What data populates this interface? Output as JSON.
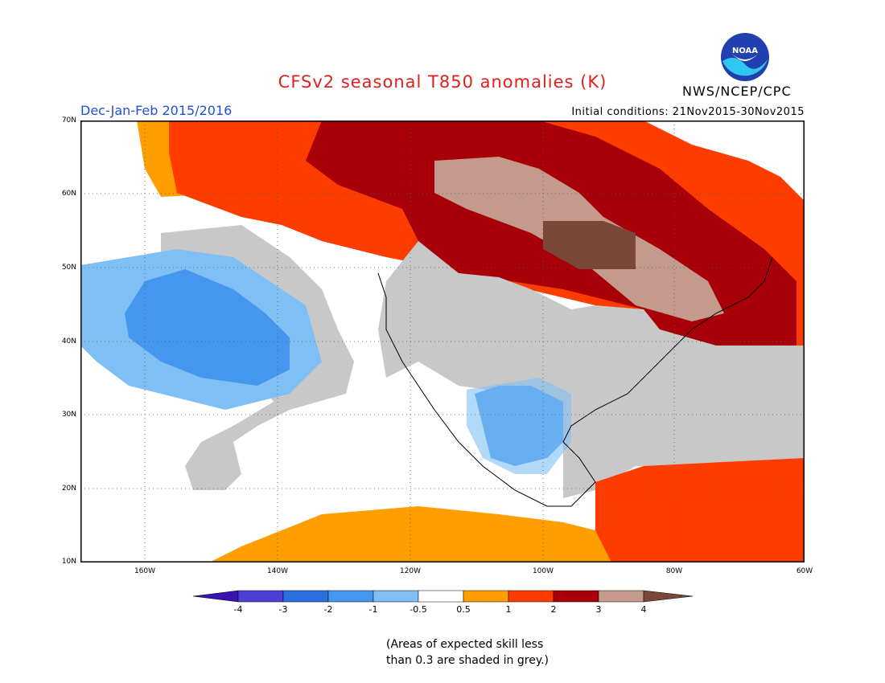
{
  "title": "CFSv2 seasonal T850 anomalies (K)",
  "season": "Dec-Jan-Feb 2015/2016",
  "initial_conditions": "Initial conditions: 21Nov2015-30Nov2015",
  "agency": "NWS/NCEP/CPC",
  "logo_text": "NOAA",
  "lat_labels": [
    "70N",
    "60N",
    "50N",
    "40N",
    "30N",
    "20N",
    "10N"
  ],
  "lon_labels": [
    "160W",
    "140W",
    "120W",
    "100W",
    "80W",
    "60W"
  ],
  "legend": {
    "labels": [
      "-4",
      "-3",
      "-2",
      "-1",
      "-0.5",
      "0.5",
      "1",
      "2",
      "3",
      "4"
    ],
    "colors": [
      "#3a12b0",
      "#4b3fd8",
      "#2a6fe0",
      "#4596ee",
      "#80bff4",
      "#ffffff",
      "#ff9e00",
      "#ff3c00",
      "#a80008",
      "#c49a8c",
      "#7a4838"
    ]
  },
  "note_line1": "(Areas of expected skill less",
  "note_line2": "than 0.3 are shaded in grey.)",
  "regions_colors": {
    "grey": "#c8c8c8",
    "orange": "#ff9e00",
    "red": "#ff3c00",
    "darkred": "#a80008",
    "tan": "#c49a8c",
    "brown": "#7a4838",
    "lightblue": "#80bff4",
    "blue": "#4596ee"
  }
}
